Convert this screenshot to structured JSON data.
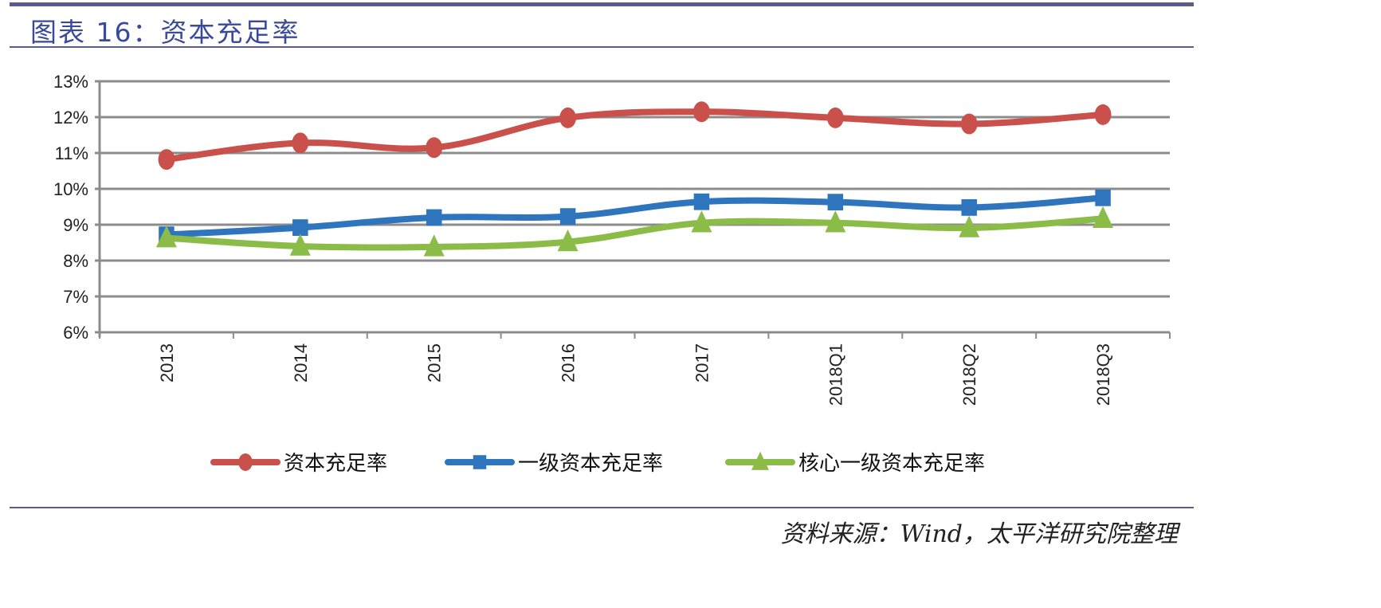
{
  "header": {
    "title": "图表 16：资本充足率"
  },
  "footer": {
    "source": "资料来源：Wind，太平洋研究院整理"
  },
  "chart_data": {
    "type": "line",
    "title": "",
    "xlabel": "",
    "ylabel": "",
    "categories": [
      "2013",
      "2014",
      "2015",
      "2016",
      "2017",
      "2018Q1",
      "2018Q2",
      "2018Q3"
    ],
    "ylim": [
      6,
      13
    ],
    "yticks": [
      "6%",
      "7%",
      "8%",
      "9%",
      "10%",
      "11%",
      "12%",
      "13%"
    ],
    "grid": true,
    "legend": "bottom",
    "series": [
      {
        "name": "资本充足率",
        "color": "#c9504b",
        "marker": "circle",
        "values": [
          10.82,
          11.28,
          11.15,
          11.98,
          12.15,
          11.98,
          11.81,
          12.07
        ]
      },
      {
        "name": "一级资本充足率",
        "color": "#2e75bd",
        "marker": "square",
        "values": [
          8.72,
          8.92,
          9.2,
          9.23,
          9.64,
          9.63,
          9.48,
          9.75
        ]
      },
      {
        "name": "核心一级资本充足率",
        "color": "#8cbc48",
        "marker": "triangle",
        "values": [
          8.63,
          8.4,
          8.38,
          8.52,
          9.05,
          9.05,
          8.91,
          9.17
        ]
      }
    ]
  }
}
